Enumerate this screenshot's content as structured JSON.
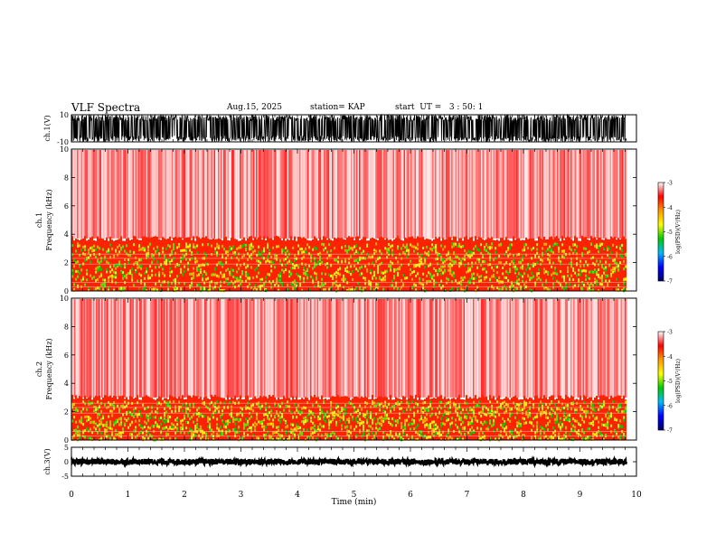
{
  "header": {
    "title": "VLF Spectra",
    "date": "Aug.15, 2025",
    "station": "station= KAP",
    "start": "start  UT =   3 : 50: 1"
  },
  "chart_data": [
    {
      "type": "line",
      "name": "ch1-waveform",
      "ylabel": "ch.1(V)",
      "ylim": [
        -10,
        10
      ],
      "y_ticks": [
        "10",
        "-10"
      ],
      "xlim": [
        0,
        10
      ],
      "x_end": 9.82,
      "description_values": {
        "min": -10,
        "max": 10
      }
    },
    {
      "type": "heatmap",
      "name": "ch1-spectrogram",
      "ylabel_top": "ch.1",
      "ylabel": "Frequency (kHz)",
      "ylim": [
        0,
        10
      ],
      "y_ticks": [
        "0",
        "2",
        "4",
        "6",
        "8",
        "10"
      ],
      "xlim": [
        0,
        10
      ],
      "x_end": 9.82,
      "colorbar": {
        "label": "log(PSD)(V²/Hz)",
        "range": [
          -7,
          -3
        ],
        "ticks": [
          "-3",
          "-4",
          "-5",
          "-6",
          "-7"
        ],
        "colors": [
          "#ffffff",
          "#ff0000",
          "#ff9900",
          "#ffff00",
          "#00cc00",
          "#00bbff",
          "#0000ff",
          "#000066"
        ]
      },
      "bands": {
        "hot_from_khz": 0,
        "hot_to_khz": 3.7
      }
    },
    {
      "type": "heatmap",
      "name": "ch2-spectrogram",
      "ylabel_top": "ch.2",
      "ylabel": "Frequency (kHz)",
      "ylim": [
        0,
        10
      ],
      "y_ticks": [
        "0",
        "2",
        "4",
        "6",
        "8",
        "10"
      ],
      "xlim": [
        0,
        10
      ],
      "x_end": 9.82,
      "colorbar": {
        "label": "log(PSD)(V²/Hz)",
        "range": [
          -7,
          -3
        ],
        "ticks": [
          "-3",
          "-4",
          "-5",
          "-6",
          "-7"
        ],
        "colors": [
          "#ffffff",
          "#ff0000",
          "#ff9900",
          "#ffff00",
          "#00cc00",
          "#00bbff",
          "#0000ff",
          "#000066"
        ]
      },
      "bands": {
        "hot_from_khz": 0,
        "hot_to_khz": 3.0
      }
    },
    {
      "type": "line",
      "name": "ch3-waveform",
      "ylabel": "ch.3(V)",
      "ylim": [
        -5,
        5
      ],
      "y_ticks": [
        "5",
        "0",
        "-5"
      ],
      "xlim": [
        0,
        10
      ],
      "x_end": 9.82,
      "description_values": {
        "min": -1,
        "max": 1
      },
      "xlabel": "Time (min)",
      "x_ticks": [
        "0",
        "1",
        "2",
        "3",
        "4",
        "5",
        "6",
        "7",
        "8",
        "9",
        "10"
      ]
    }
  ]
}
